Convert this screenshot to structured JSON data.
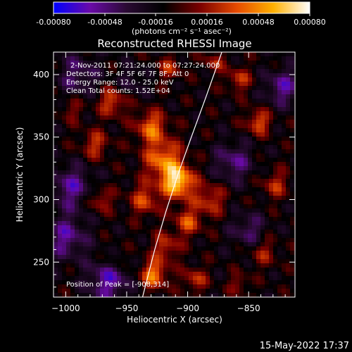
{
  "colorbar": {
    "ticks": [
      "-0.00080",
      "-0.00048",
      "-0.00016",
      "0.00016",
      "0.00048",
      "0.00080"
    ],
    "units_label": "(photons cm⁻² s⁻¹ asec⁻²)",
    "colormap": [
      "#0000ff",
      "#6a0aa8",
      "#2a0a33",
      "#000000",
      "#7a0000",
      "#e64a00",
      "#ffb000",
      "#ffffff"
    ]
  },
  "info_lines": [
    "2-Nov-2011 07:21:24.000 to 07:27:24.000",
    "Detectors: 3F 4F 5F 6F 7F 8F, Att 0",
    "Energy Range: 12.0 - 25.0 keV",
    "Clean     Total counts: 1.52E+04"
  ],
  "peak_label": "Position of Peak = [-908,314]",
  "timestamp": "15-May-2022 17:37",
  "chart_data": {
    "type": "heatmap",
    "title": "Reconstructed RHESSI Image",
    "xlabel": "Heliocentric X (arcsec)",
    "ylabel": "Heliocentric Y (arcsec)",
    "xlim": [
      -1010,
      -812
    ],
    "ylim": [
      222,
      418
    ],
    "x_ticks": [
      -1000,
      -950,
      -900,
      -850
    ],
    "y_ticks": [
      250,
      300,
      350,
      400
    ],
    "x_tick_labels": [
      "−1000",
      "−950",
      "−900",
      "−850"
    ],
    "y_tick_labels": [
      "250",
      "300",
      "350",
      "400"
    ],
    "value_range": [
      -0.0008,
      0.0008
    ],
    "peak": {
      "x": -908,
      "y": 314,
      "value": 0.0008
    },
    "sources": [
      {
        "x": -908,
        "y": 314,
        "value": 0.00078,
        "sigma": 9
      },
      {
        "x": -920,
        "y": 332,
        "value": 0.00055,
        "sigma": 11
      },
      {
        "x": -930,
        "y": 358,
        "value": 0.0005,
        "sigma": 9
      },
      {
        "x": -962,
        "y": 378,
        "value": 0.00042,
        "sigma": 8
      },
      {
        "x": -976,
        "y": 344,
        "value": 0.00036,
        "sigma": 8
      },
      {
        "x": -995,
        "y": 372,
        "value": 0.00022,
        "sigma": 7
      },
      {
        "x": -882,
        "y": 300,
        "value": 0.00038,
        "sigma": 9
      },
      {
        "x": -935,
        "y": 300,
        "value": 0.0004,
        "sigma": 9
      },
      {
        "x": -972,
        "y": 300,
        "value": 0.00035,
        "sigma": 7
      },
      {
        "x": -900,
        "y": 282,
        "value": 0.00042,
        "sigma": 8
      },
      {
        "x": -918,
        "y": 262,
        "value": 0.00036,
        "sigma": 8
      },
      {
        "x": -928,
        "y": 240,
        "value": 0.00055,
        "sigma": 8
      },
      {
        "x": -894,
        "y": 236,
        "value": 0.00035,
        "sigma": 7
      },
      {
        "x": -842,
        "y": 362,
        "value": 0.00045,
        "sigma": 7
      },
      {
        "x": -858,
        "y": 396,
        "value": 0.00035,
        "sigma": 7
      },
      {
        "x": -828,
        "y": 312,
        "value": 0.00032,
        "sigma": 8
      },
      {
        "x": -838,
        "y": 258,
        "value": 0.00028,
        "sigma": 8
      },
      {
        "x": -858,
        "y": 232,
        "value": 0.00025,
        "sigma": 6
      },
      {
        "x": -878,
        "y": 410,
        "value": 0.0003,
        "sigma": 6
      },
      {
        "x": -915,
        "y": 405,
        "value": 0.00032,
        "sigma": 7
      },
      {
        "x": -960,
        "y": 252,
        "value": 0.00018,
        "sigma": 6
      },
      {
        "x": -965,
        "y": 235,
        "value": -0.00045,
        "sigma": 12
      },
      {
        "x": -995,
        "y": 310,
        "value": -0.0004,
        "sigma": 12
      },
      {
        "x": -1000,
        "y": 270,
        "value": -0.0004,
        "sigma": 12
      },
      {
        "x": -990,
        "y": 400,
        "value": -0.0003,
        "sigma": 12
      },
      {
        "x": -862,
        "y": 330,
        "value": -0.00035,
        "sigma": 11
      },
      {
        "x": -822,
        "y": 390,
        "value": -0.0004,
        "sigma": 10
      },
      {
        "x": -850,
        "y": 275,
        "value": -0.0003,
        "sigma": 10
      },
      {
        "x": -945,
        "y": 395,
        "value": -0.0002,
        "sigma": 8
      }
    ],
    "limb": [
      [
        -937,
        222
      ],
      [
        -927,
        260
      ],
      [
        -918,
        290
      ],
      [
        -908,
        320
      ],
      [
        -897,
        350
      ],
      [
        -885,
        382
      ],
      [
        -872,
        418
      ]
    ]
  }
}
